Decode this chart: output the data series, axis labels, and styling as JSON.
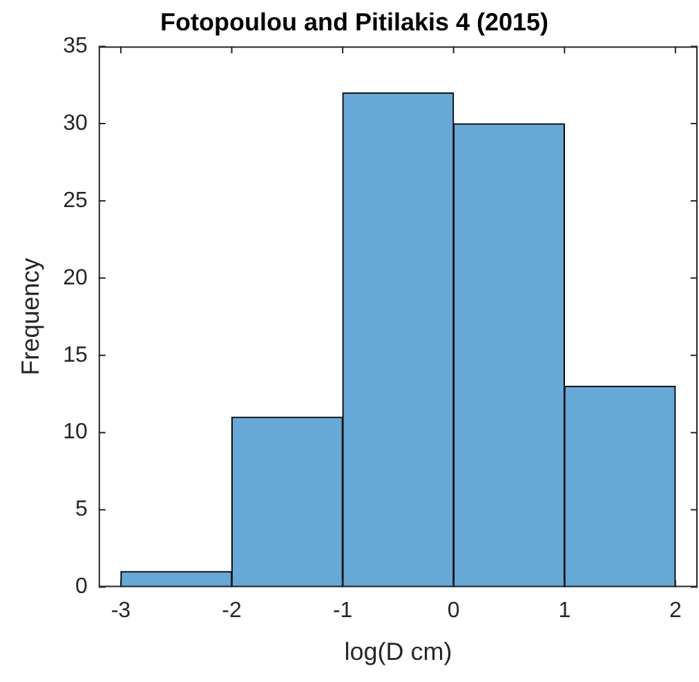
{
  "chart_data": {
    "type": "histogram",
    "title": "Fotopoulou and Pitilakis 4 (2015)",
    "xlabel": "log(D cm)",
    "ylabel": "Frequency",
    "bins": [
      -3,
      -2,
      -1,
      0,
      1,
      2
    ],
    "values": [
      1,
      11,
      32,
      30,
      13
    ],
    "color": "#66a9d7",
    "xlim": [
      -3.2,
      2.2
    ],
    "xticks": [
      -3,
      -2,
      -1,
      0,
      1,
      2
    ],
    "ylim": [
      0,
      35
    ],
    "yticks": [
      0,
      5,
      10,
      15,
      20,
      25,
      30,
      35
    ],
    "grid": false,
    "legend": false
  }
}
